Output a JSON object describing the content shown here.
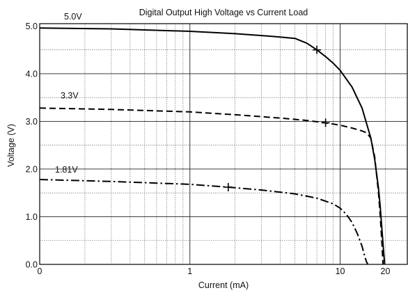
{
  "chart_data": {
    "type": "line",
    "title": "Digital Output High Voltage vs Current Load",
    "xlabel": "Current (mA)",
    "ylabel": "Voltage (V)",
    "x_scale": "log",
    "xlim": [
      0.1,
      28
    ],
    "ylim": [
      0,
      5.05
    ],
    "grid": true,
    "x_ticks": [
      {
        "value": 0.1,
        "label": "0"
      },
      {
        "value": 1,
        "label": "1"
      },
      {
        "value": 10,
        "label": "10"
      },
      {
        "value": 20,
        "label": "20"
      }
    ],
    "y_ticks": [
      {
        "value": 0,
        "label": "0.0"
      },
      {
        "value": 1,
        "label": "1.0"
      },
      {
        "value": 2,
        "label": "2.0"
      },
      {
        "value": 3,
        "label": "3.0"
      },
      {
        "value": 4,
        "label": "4.0"
      },
      {
        "value": 5,
        "label": "5.0"
      }
    ],
    "series": [
      {
        "name": "5.0V",
        "style": "solid",
        "x": [
          0.1,
          0.3,
          1,
          2,
          3,
          4,
          5,
          6,
          7,
          8,
          9,
          10,
          12,
          14,
          16,
          17,
          18,
          18.5,
          19,
          19.5,
          19.8
        ],
        "y": [
          4.96,
          4.94,
          4.89,
          4.84,
          4.8,
          4.77,
          4.74,
          4.64,
          4.5,
          4.36,
          4.22,
          4.07,
          3.72,
          3.28,
          2.65,
          2.2,
          1.6,
          1.2,
          0.7,
          0.25,
          0.0
        ],
        "marker": {
          "x": 7.0,
          "y": 4.5
        }
      },
      {
        "name": "3.3V",
        "style": "dashed",
        "x": [
          0.1,
          0.3,
          1,
          2,
          4,
          6,
          8,
          10,
          12,
          14,
          15,
          16,
          17,
          18,
          18.5,
          19,
          19.3
        ],
        "y": [
          3.28,
          3.25,
          3.2,
          3.14,
          3.07,
          3.02,
          2.97,
          2.92,
          2.86,
          2.8,
          2.76,
          2.65,
          2.25,
          1.5,
          1.0,
          0.4,
          0.0
        ],
        "marker": {
          "x": 8.0,
          "y": 2.97
        }
      },
      {
        "name": "1.81V",
        "style": "dashdot",
        "x": [
          0.1,
          0.3,
          1,
          1.8,
          3,
          5,
          7,
          9,
          10,
          11,
          12,
          13,
          14,
          14.5,
          15,
          15.3
        ],
        "y": [
          1.78,
          1.74,
          1.68,
          1.62,
          1.56,
          1.48,
          1.39,
          1.27,
          1.18,
          1.05,
          0.88,
          0.65,
          0.38,
          0.2,
          0.05,
          0.0
        ],
        "marker": {
          "x": 1.8,
          "y": 1.62
        }
      }
    ]
  }
}
